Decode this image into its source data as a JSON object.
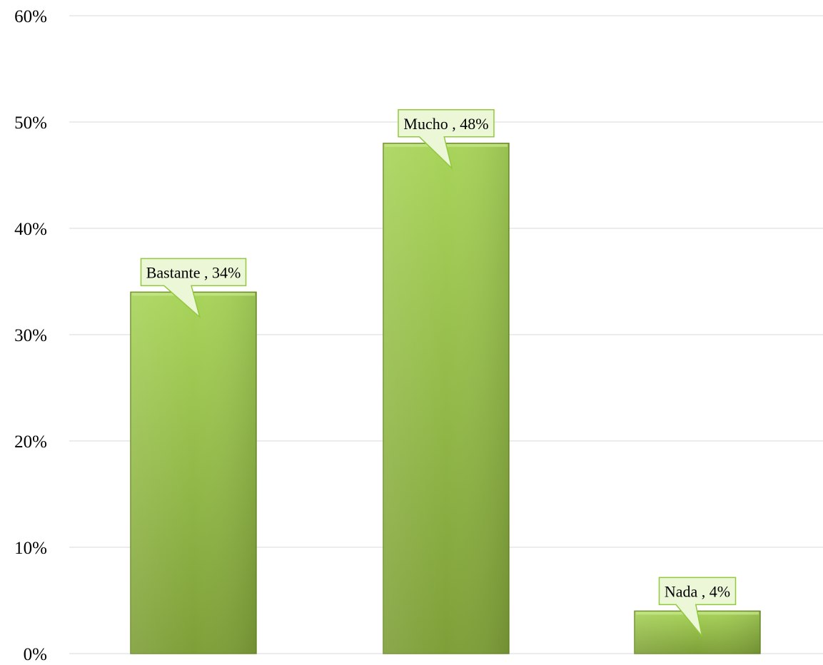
{
  "chart_data": {
    "type": "bar",
    "categories": [
      "Bastante",
      "Mucho",
      "Nada"
    ],
    "values": [
      34,
      48,
      4
    ],
    "value_unit": "%",
    "data_labels": [
      "Bastante , 34%",
      "Mucho , 48%",
      "Nada , 4%"
    ],
    "title": "",
    "xlabel": "",
    "ylabel": "",
    "ylim": [
      0,
      60
    ],
    "yticks": [
      0,
      10,
      20,
      30,
      40,
      50,
      60
    ],
    "ytick_labels": [
      "0%",
      "10%",
      "20%",
      "30%",
      "40%",
      "50%",
      "60%"
    ],
    "grid": true,
    "legend": "none",
    "colors": {
      "bar_top": "#a8d45a",
      "bar_bottom": "#7e9f38",
      "bar_edge": "#6f8f2c",
      "label_fill": "#ecf7d7",
      "label_border": "#92c83e",
      "gridline": "#d9d9d9"
    }
  }
}
